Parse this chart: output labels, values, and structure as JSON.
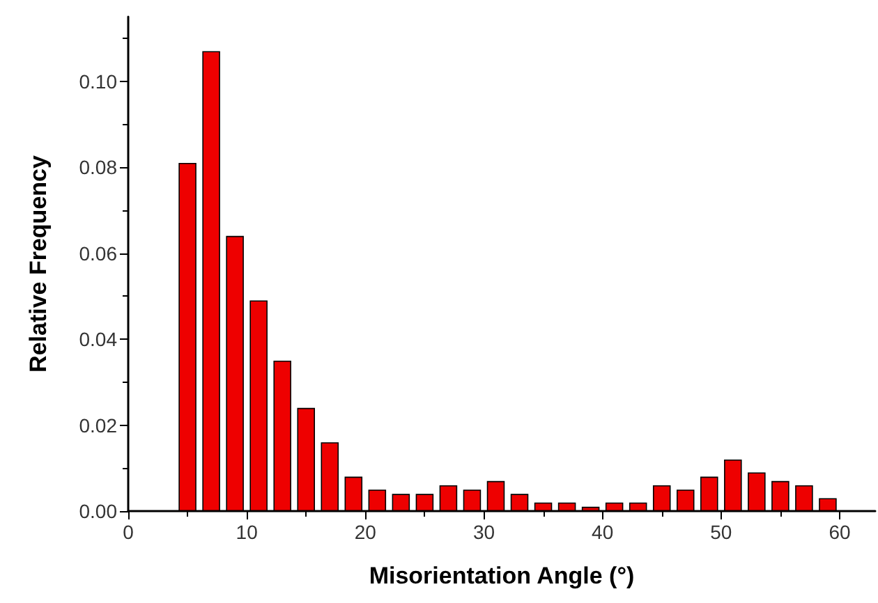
{
  "chart_data": {
    "type": "bar",
    "xlabel": "Misorientation Angle (°)",
    "ylabel": "Relative Frequency",
    "x": [
      5,
      7,
      9,
      11,
      13,
      15,
      17,
      19,
      21,
      23,
      25,
      27,
      29,
      31,
      33,
      35,
      37,
      39,
      41,
      43,
      45,
      47,
      49,
      51,
      53,
      55,
      57,
      59
    ],
    "series": [
      {
        "color": "#ee0000",
        "values": [
          0.081,
          0.107,
          0.064,
          0.049,
          0.035,
          0.024,
          0.016,
          0.008,
          0.005,
          0.004,
          0.004,
          0.006,
          0.005,
          0.007,
          0.004,
          0.002,
          0.002,
          0.001,
          0.002,
          0.002,
          0.006,
          0.005,
          0.008,
          0.012,
          0.009,
          0.007,
          0.006,
          0.003
        ]
      }
    ],
    "xlim": [
      0,
      63
    ],
    "xticks": [
      0,
      10,
      20,
      30,
      40,
      50,
      60
    ],
    "ylim": [
      0,
      0.115
    ],
    "yticks": [
      {
        "value": 0,
        "label": "0.00"
      },
      {
        "value": 0.02,
        "label": "0.02"
      },
      {
        "value": 0.04,
        "label": "0.04"
      },
      {
        "value": 0.06,
        "label": "0.06"
      },
      {
        "value": 0.08,
        "label": "0.08"
      },
      {
        "value": 0.1,
        "label": "0.10"
      }
    ],
    "grid": false
  }
}
